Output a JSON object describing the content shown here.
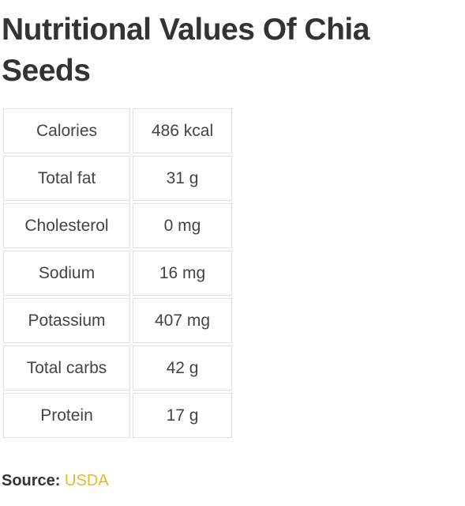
{
  "title": "Nutritional Values Of Chia Seeds",
  "nutrition_table": {
    "rows": [
      {
        "name": "Calories",
        "value": "486 kcal"
      },
      {
        "name": "Total fat",
        "value": "31 g"
      },
      {
        "name": "Cholesterol",
        "value": "0 mg"
      },
      {
        "name": "Sodium",
        "value": "16 mg"
      },
      {
        "name": "Potassium",
        "value": "407 mg"
      },
      {
        "name": "Total carbs",
        "value": "42 g"
      },
      {
        "name": "Protein",
        "value": "17 g"
      }
    ]
  },
  "source": {
    "label": "Source:",
    "link_text": "USDA",
    "link_color": "#e4b834"
  }
}
